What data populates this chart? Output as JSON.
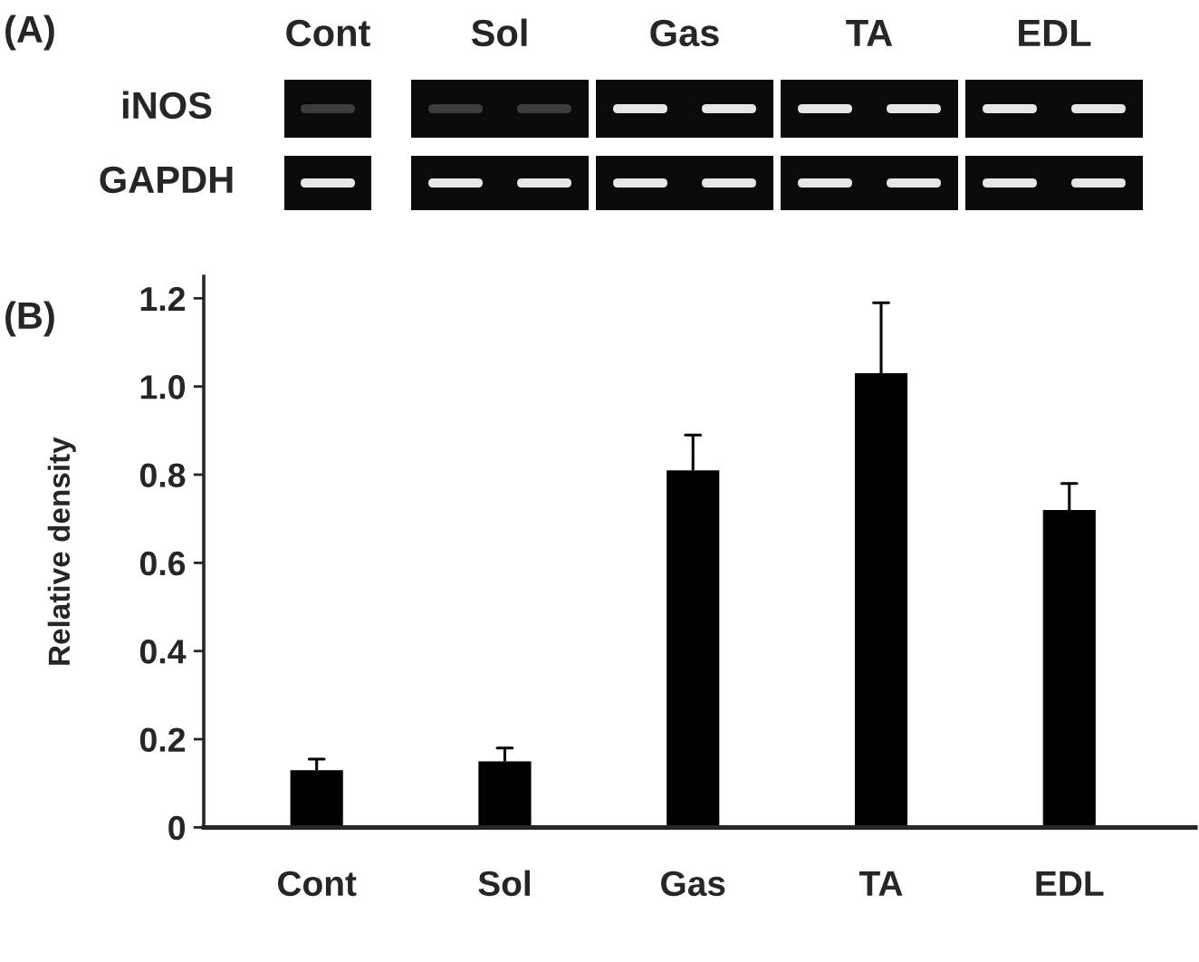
{
  "chart_data": [
    {
      "type": "other",
      "title": "(A)",
      "categories": [
        "Cont",
        "Sol",
        "Gas",
        "TA",
        "EDL"
      ],
      "y_categories": [
        "iNOS",
        "GAPDH"
      ]
    },
    {
      "type": "bar",
      "title": "(B)",
      "ylabel": "Relative density",
      "categories": [
        "Cont",
        "Sol",
        "Gas",
        "TA",
        "EDL"
      ],
      "values": [
        0.13,
        0.15,
        0.81,
        1.03,
        0.72
      ],
      "errors": [
        [
          0.13,
          0.155
        ],
        [
          0.15,
          0.18
        ],
        [
          0.81,
          0.89
        ],
        [
          1.03,
          1.19
        ],
        [
          0.72,
          0.78
        ]
      ],
      "color": "#000000",
      "ylim": [
        0,
        1.25
      ],
      "yticks": [
        0,
        0.2,
        0.4,
        0.6,
        0.8,
        {
          "value": 1,
          "label": "1.0"
        },
        1.2
      ]
    }
  ]
}
